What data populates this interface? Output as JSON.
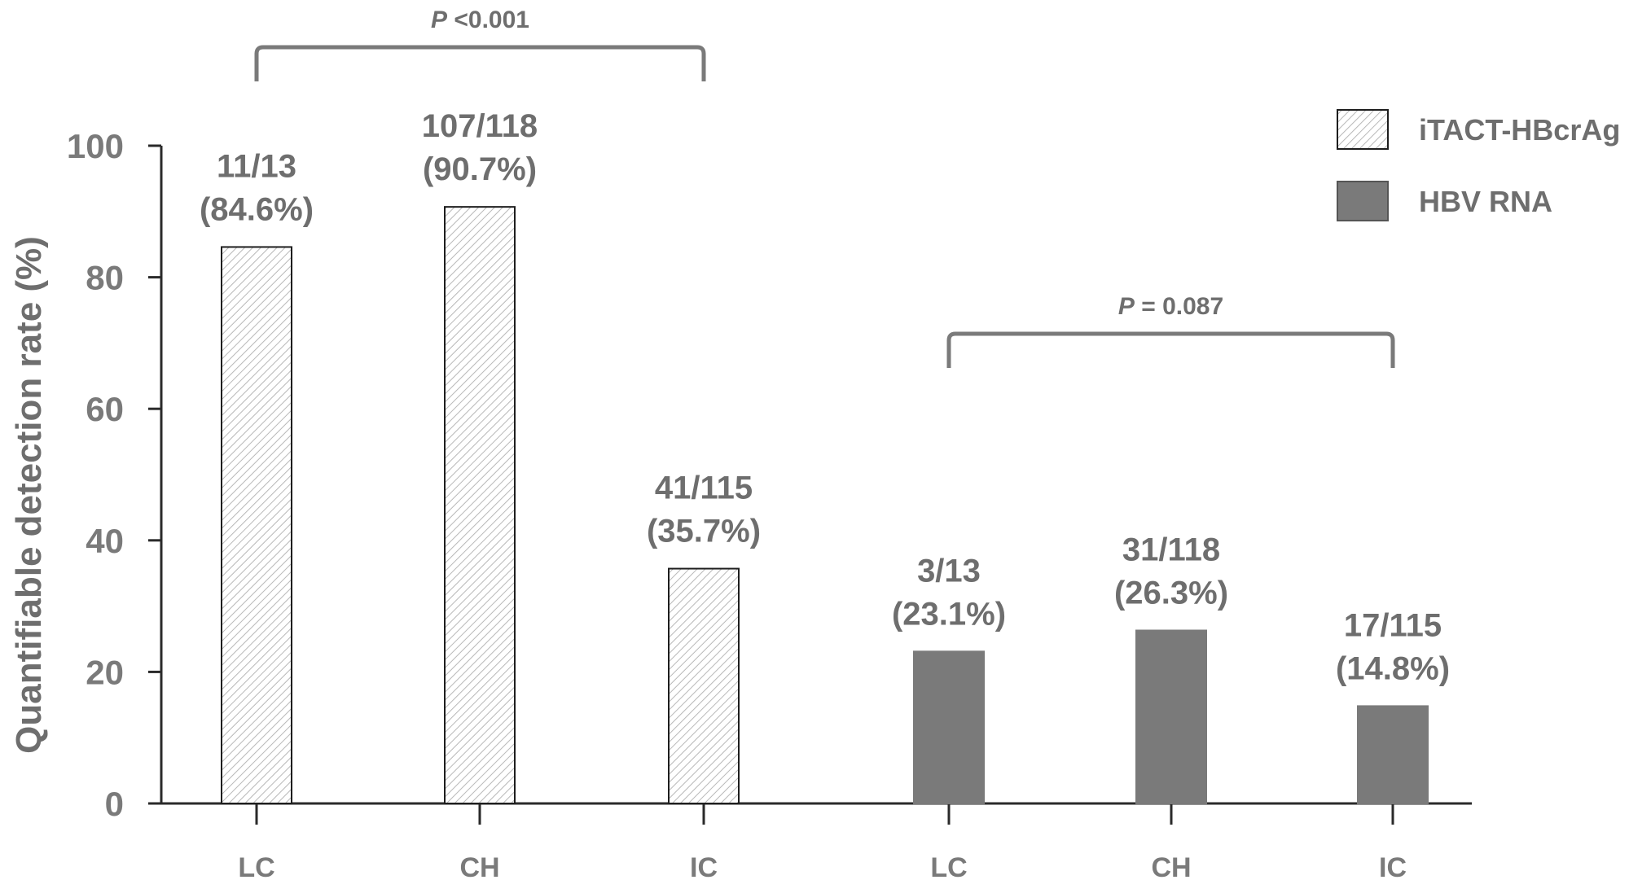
{
  "chart_data": {
    "type": "bar",
    "ylabel": "Quantifiable detection rate (%)",
    "xlabel": "",
    "ylim": [
      0,
      100
    ],
    "yticks": [
      "0",
      "20",
      "40",
      "60",
      "80",
      "100"
    ],
    "grid": false,
    "legend_position": "top-right",
    "colors": {
      "hatched": "#ffffff",
      "solid": "#7a7a7a",
      "text": "#6e6e6e",
      "axis": "#2a2a2a"
    },
    "series": [
      {
        "name": "iTACT-HBcrAg",
        "style": "hatched",
        "categories": [
          "LC",
          "CH",
          "IC"
        ],
        "values": [
          84.6,
          90.7,
          35.7
        ],
        "labels": [
          [
            "11/13",
            "(84.6%)"
          ],
          [
            "107/118",
            "(90.7%)"
          ],
          [
            "41/115",
            "(35.7%)"
          ]
        ],
        "comparison": {
          "prefix": "P",
          "text": " <0.001"
        }
      },
      {
        "name": "HBV RNA",
        "style": "solid",
        "categories": [
          "LC",
          "CH",
          "IC"
        ],
        "values": [
          23.1,
          26.3,
          14.8
        ],
        "labels": [
          [
            "3/13",
            "(23.1%)"
          ],
          [
            "31/118",
            "(26.3%)"
          ],
          [
            "17/115",
            "(14.8%)"
          ]
        ],
        "comparison": {
          "prefix": "P",
          "text": " = 0.087"
        }
      }
    ]
  }
}
